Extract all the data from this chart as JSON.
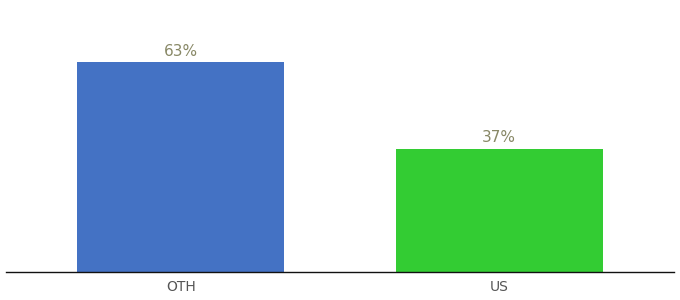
{
  "categories": [
    "OTH",
    "US"
  ],
  "values": [
    63,
    37
  ],
  "bar_colors": [
    "#4472c4",
    "#33cc33"
  ],
  "label_texts": [
    "63%",
    "37%"
  ],
  "label_color": "#888866",
  "ylim": [
    0,
    80
  ],
  "background_color": "#ffffff",
  "tick_label_fontsize": 10,
  "value_label_fontsize": 11,
  "bar_width": 0.65
}
